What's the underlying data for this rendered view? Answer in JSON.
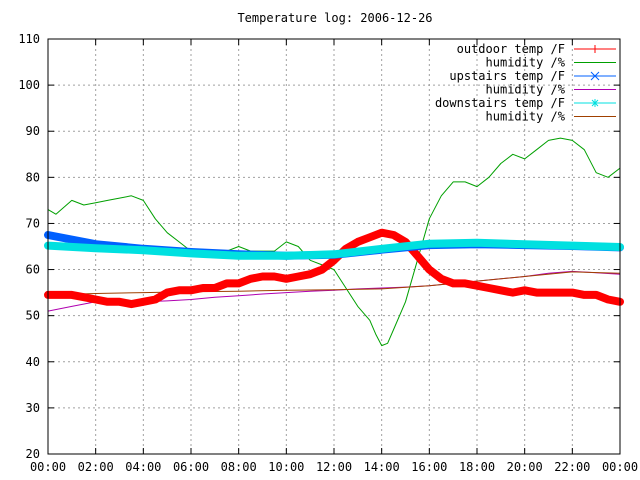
{
  "chart_data": {
    "type": "line",
    "title": "Temperature log: 2006-12-26",
    "xlabel": "",
    "ylabel": "",
    "xlim": [
      "00:00",
      "24:00"
    ],
    "ylim": [
      20,
      110
    ],
    "grid": true,
    "legend_position": "top-right",
    "x_ticks": [
      "00:00",
      "02:00",
      "04:00",
      "06:00",
      "08:00",
      "10:00",
      "12:00",
      "14:00",
      "16:00",
      "18:00",
      "20:00",
      "22:00",
      "00:00"
    ],
    "y_ticks": [
      20,
      30,
      40,
      50,
      60,
      70,
      80,
      90,
      100,
      110
    ],
    "series": [
      {
        "name": "outdoor temp /F",
        "color": "#ff0000",
        "marker": "plus",
        "thick": true,
        "x": [
          "00:00",
          "01:00",
          "01:30",
          "02:00",
          "02:30",
          "03:00",
          "03:30",
          "04:00",
          "04:30",
          "05:00",
          "05:30",
          "06:00",
          "06:30",
          "07:00",
          "07:30",
          "08:00",
          "08:30",
          "09:00",
          "09:30",
          "10:00",
          "10:30",
          "11:00",
          "11:30",
          "12:00",
          "12:30",
          "13:00",
          "13:30",
          "14:00",
          "14:30",
          "15:00",
          "15:30",
          "16:00",
          "16:30",
          "17:00",
          "17:30",
          "18:00",
          "18:30",
          "19:00",
          "19:30",
          "20:00",
          "20:30",
          "21:00",
          "21:30",
          "22:00",
          "22:30",
          "23:00",
          "23:30",
          "24:00"
        ],
        "y": [
          54.5,
          54.5,
          54,
          53.5,
          53,
          53,
          52.5,
          53,
          53.5,
          55,
          55.5,
          55.5,
          56,
          56,
          57,
          57,
          58,
          58.5,
          58.5,
          58,
          58.5,
          59,
          60,
          62,
          64.5,
          66,
          67,
          68,
          67.5,
          66,
          63,
          60,
          58,
          57,
          57,
          56.5,
          56,
          55.5,
          55,
          55.5,
          55,
          55,
          55,
          55,
          54.5,
          54.5,
          53.5,
          53
        ]
      },
      {
        "name": "humidity /%",
        "color": "#00a000",
        "marker": "none",
        "thick": false,
        "x": [
          "00:00",
          "00:20",
          "01:00",
          "01:30",
          "02:00",
          "02:30",
          "03:00",
          "03:30",
          "04:00",
          "04:30",
          "05:00",
          "05:30",
          "06:00",
          "06:30",
          "07:00",
          "07:30",
          "08:00",
          "08:30",
          "09:00",
          "09:30",
          "10:00",
          "10:30",
          "11:00",
          "11:30",
          "12:00",
          "12:30",
          "13:00",
          "13:30",
          "13:45",
          "14:00",
          "14:15",
          "14:30",
          "15:00",
          "15:30",
          "16:00",
          "16:30",
          "17:00",
          "17:30",
          "18:00",
          "18:30",
          "19:00",
          "19:30",
          "20:00",
          "20:30",
          "21:00",
          "21:30",
          "22:00",
          "22:30",
          "23:00",
          "23:30",
          "24:00"
        ],
        "y": [
          73,
          72,
          75,
          74,
          74.5,
          75,
          75.5,
          76,
          75,
          71,
          68,
          66,
          64,
          63,
          64,
          64,
          65,
          64,
          64,
          64,
          66,
          65,
          62,
          61,
          60,
          56,
          52,
          49,
          46,
          43.5,
          44,
          47,
          53,
          62,
          71,
          76,
          79,
          79,
          78,
          80,
          83,
          85,
          84,
          86,
          88,
          88.5,
          88,
          86,
          81,
          80,
          82
        ]
      },
      {
        "name": "upstairs temp /F",
        "color": "#0060ff",
        "marker": "cross",
        "thick": true,
        "x": [
          "00:00",
          "02:00",
          "04:00",
          "06:00",
          "08:00",
          "10:00",
          "12:00",
          "14:00",
          "16:00",
          "18:00",
          "20:00",
          "22:00",
          "24:00"
        ],
        "y": [
          67.5,
          65.5,
          64.5,
          63.8,
          63.3,
          63,
          63.2,
          64.3,
          65.3,
          65.5,
          65.3,
          65.1,
          64.8
        ]
      },
      {
        "name": "humidity /%",
        "color": "#b000b0",
        "marker": "none",
        "thick": false,
        "x": [
          "00:00",
          "01:00",
          "02:00",
          "03:00",
          "04:00",
          "05:00",
          "06:00",
          "07:00",
          "08:00",
          "09:00",
          "10:00",
          "11:00",
          "12:00",
          "13:00",
          "14:00",
          "15:00",
          "16:00",
          "17:00",
          "18:00",
          "19:00",
          "20:00",
          "21:00",
          "22:00",
          "23:00",
          "24:00"
        ],
        "y": [
          51,
          52,
          53,
          52.5,
          53,
          53.2,
          53.5,
          54,
          54.3,
          54.7,
          55,
          55.3,
          55.5,
          55.8,
          56,
          56.2,
          56.5,
          57,
          57.5,
          58,
          58.5,
          59.2,
          59.6,
          59.3,
          59
        ]
      },
      {
        "name": "downstairs temp /F",
        "color": "#00e0e0",
        "marker": "star",
        "thick": true,
        "x": [
          "00:00",
          "02:00",
          "04:00",
          "06:00",
          "08:00",
          "10:00",
          "12:00",
          "14:00",
          "16:00",
          "18:00",
          "20:00",
          "22:00",
          "24:00"
        ],
        "y": [
          65.2,
          64.6,
          64.2,
          63.5,
          63,
          63,
          63.3,
          64.5,
          65.6,
          65.8,
          65.5,
          65.2,
          64.9
        ]
      },
      {
        "name": "humidity /%",
        "color": "#a04000",
        "marker": "none",
        "thick": false,
        "x": [
          "00:00",
          "02:00",
          "04:00",
          "06:00",
          "08:00",
          "10:00",
          "12:00",
          "14:00",
          "16:00",
          "18:00",
          "20:00",
          "22:00",
          "24:00"
        ],
        "y": [
          54.5,
          54.8,
          55,
          55.2,
          55.3,
          55.5,
          55.6,
          55.8,
          56.5,
          57.5,
          58.5,
          59.5,
          59.2
        ]
      }
    ]
  }
}
